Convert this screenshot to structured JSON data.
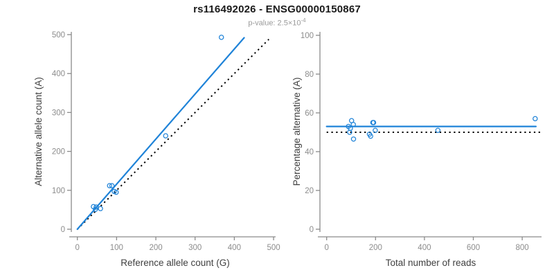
{
  "header": {
    "title": "rs116492026 - ENSG00000150867",
    "subtitle_base": "p-value: 2.5×10",
    "subtitle_exp": "-4"
  },
  "colors": {
    "accent_blue": "#1f83d8",
    "identity_black": "#000000",
    "axis_line_gray": "#8a8a8a",
    "tick_label_gray": "#8c8c8c",
    "axis_title_gray": "#404040",
    "title_black": "#1a1a1a",
    "subtitle_gray": "#9a9a9a"
  },
  "chart_data": [
    {
      "id": "allele-counts-scatter",
      "type": "scatter",
      "xlabel": "Reference allele count (G)",
      "ylabel": "Alternative allele count (A)",
      "xlim": [
        0,
        500
      ],
      "ylim": [
        0,
        500
      ],
      "xticks": [
        0,
        100,
        200,
        300,
        400,
        500
      ],
      "yticks": [
        0,
        100,
        200,
        300,
        400,
        500
      ],
      "grid": false,
      "legend": "none",
      "points": [
        [
          41,
          58
        ],
        [
          48,
          57
        ],
        [
          59,
          53
        ],
        [
          46,
          51
        ],
        [
          82,
          112
        ],
        [
          88,
          112
        ],
        [
          94,
          97
        ],
        [
          99,
          95
        ],
        [
          225,
          240
        ],
        [
          367,
          493
        ]
      ],
      "fit_line": {
        "from": [
          0,
          0
        ],
        "to": [
          425,
          492
        ],
        "style": "solid",
        "color": "blue"
      },
      "identity_line": {
        "from": [
          0,
          0
        ],
        "to": [
          488,
          488
        ],
        "style": "dotted",
        "color": "black"
      }
    },
    {
      "id": "percentage-vs-reads-scatter",
      "type": "scatter",
      "xlabel": "Total number of reads",
      "ylabel": "Percentage alternative (A)",
      "xlim": [
        0,
        880
      ],
      "ylim": [
        0,
        100
      ],
      "xticks": [
        0,
        200,
        400,
        600,
        800
      ],
      "yticks": [
        0,
        20,
        40,
        60,
        80,
        100
      ],
      "grid": false,
      "legend": "none",
      "points": [
        [
          89,
          53
        ],
        [
          94,
          50
        ],
        [
          97,
          52
        ],
        [
          102,
          56
        ],
        [
          109,
          54
        ],
        [
          110,
          46.5
        ],
        [
          175,
          49
        ],
        [
          180,
          48
        ],
        [
          189,
          55
        ],
        [
          192,
          55
        ],
        [
          199,
          51
        ],
        [
          455,
          51
        ],
        [
          853,
          57
        ]
      ],
      "fit_line": {
        "from": [
          0,
          53
        ],
        "to": [
          856,
          53
        ],
        "style": "solid",
        "color": "blue"
      },
      "identity_line": {
        "from": [
          0,
          50
        ],
        "to": [
          879,
          50
        ],
        "style": "dotted",
        "color": "black"
      }
    }
  ]
}
